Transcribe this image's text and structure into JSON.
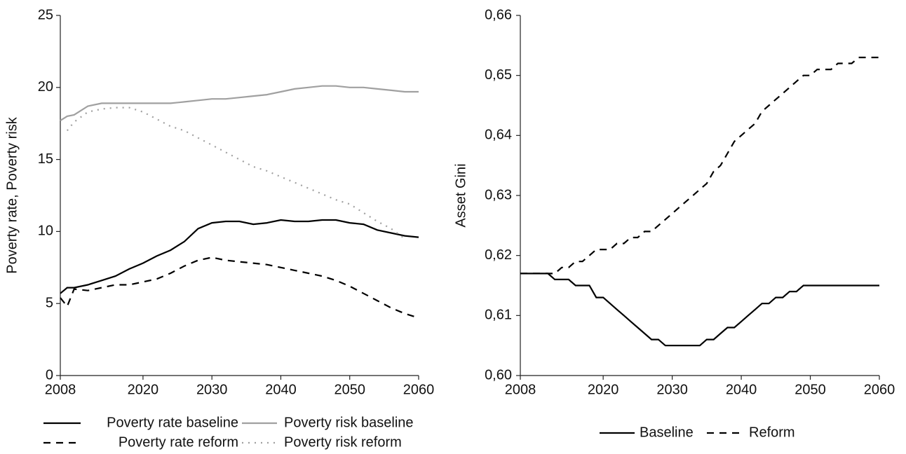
{
  "chart_data": [
    {
      "type": "line",
      "y_label": "Poverty rate, Poverty risk",
      "x": [
        2008,
        2009,
        2010,
        2012,
        2014,
        2016,
        2018,
        2020,
        2022,
        2024,
        2026,
        2028,
        2030,
        2032,
        2034,
        2036,
        2038,
        2040,
        2042,
        2044,
        2046,
        2048,
        2050,
        2052,
        2054,
        2056,
        2058,
        2060
      ],
      "series": [
        {
          "name": "Poverty rate baseline",
          "color": "#000000",
          "style": "solid",
          "values": [
            5.7,
            6.1,
            6.1,
            6.3,
            6.6,
            6.9,
            7.4,
            7.8,
            8.3,
            8.7,
            9.3,
            10.2,
            10.6,
            10.7,
            10.7,
            10.5,
            10.6,
            10.8,
            10.7,
            10.7,
            10.8,
            10.8,
            10.6,
            10.5,
            10.1,
            9.9,
            9.7,
            9.6
          ]
        },
        {
          "name": "Poverty risk baseline",
          "color": "#a0a0a0",
          "style": "solid",
          "values": [
            17.7,
            18.0,
            18.1,
            18.7,
            18.9,
            18.9,
            18.9,
            18.9,
            18.9,
            18.9,
            19.0,
            19.1,
            19.2,
            19.2,
            19.3,
            19.4,
            19.5,
            19.7,
            19.9,
            20.0,
            20.1,
            20.1,
            20.0,
            20.0,
            19.9,
            19.8,
            19.7,
            19.7
          ]
        },
        {
          "name": "Poverty rate reform",
          "color": "#000000",
          "style": "dashed",
          "values": [
            5.4,
            4.8,
            6.0,
            5.9,
            6.1,
            6.3,
            6.3,
            6.5,
            6.7,
            7.1,
            7.6,
            8.0,
            8.2,
            8.0,
            7.9,
            7.8,
            7.7,
            7.5,
            7.3,
            7.1,
            6.9,
            6.6,
            6.2,
            5.7,
            5.2,
            4.7,
            4.3,
            4.0
          ]
        },
        {
          "name": "Poverty risk reform",
          "color": "#a0a0a0",
          "style": "dotted",
          "values": [
            null,
            17.0,
            17.6,
            18.3,
            18.5,
            18.6,
            18.6,
            18.3,
            17.8,
            17.3,
            17.0,
            16.5,
            16.0,
            15.5,
            15.0,
            14.5,
            14.2,
            13.8,
            13.4,
            13.0,
            12.6,
            12.2,
            11.9,
            11.3,
            10.7,
            10.2,
            9.5,
            null
          ]
        }
      ],
      "xlim": [
        2008,
        2060
      ],
      "xticks": [
        2008,
        2020,
        2030,
        2040,
        2050,
        2060
      ],
      "ylim": [
        0,
        25
      ],
      "yticks": [
        0,
        5,
        10,
        15,
        20,
        25
      ]
    },
    {
      "type": "line",
      "y_label": "Asset Gini",
      "x": [
        2008,
        2009,
        2010,
        2011,
        2012,
        2013,
        2014,
        2015,
        2016,
        2017,
        2018,
        2019,
        2020,
        2021,
        2022,
        2023,
        2024,
        2025,
        2026,
        2027,
        2028,
        2029,
        2030,
        2031,
        2032,
        2033,
        2034,
        2035,
        2036,
        2037,
        2038,
        2039,
        2040,
        2041,
        2042,
        2043,
        2044,
        2045,
        2046,
        2047,
        2048,
        2049,
        2050,
        2051,
        2052,
        2053,
        2054,
        2055,
        2056,
        2057,
        2058,
        2059,
        2060
      ],
      "series": [
        {
          "name": "Baseline",
          "color": "#000000",
          "style": "solid",
          "values": [
            0.617,
            0.617,
            0.617,
            0.617,
            0.617,
            0.616,
            0.616,
            0.616,
            0.615,
            0.615,
            0.615,
            0.613,
            0.613,
            0.612,
            0.611,
            0.61,
            0.609,
            0.608,
            0.607,
            0.606,
            0.606,
            0.605,
            0.605,
            0.605,
            0.605,
            0.605,
            0.605,
            0.606,
            0.606,
            0.607,
            0.608,
            0.608,
            0.609,
            0.61,
            0.611,
            0.612,
            0.612,
            0.613,
            0.613,
            0.614,
            0.614,
            0.615,
            0.615,
            0.615,
            0.615,
            0.615,
            0.615,
            0.615,
            0.615,
            0.615,
            0.615,
            0.615,
            0.615
          ]
        },
        {
          "name": "Reform",
          "color": "#000000",
          "style": "dashed",
          "values": [
            0.617,
            0.617,
            0.617,
            0.617,
            0.617,
            0.617,
            0.618,
            0.618,
            0.619,
            0.619,
            0.62,
            0.621,
            0.621,
            0.621,
            0.622,
            0.622,
            0.623,
            0.623,
            0.624,
            0.624,
            0.625,
            0.626,
            0.627,
            0.628,
            0.629,
            0.63,
            0.631,
            0.632,
            0.634,
            0.635,
            0.637,
            0.639,
            0.64,
            0.641,
            0.642,
            0.644,
            0.645,
            0.646,
            0.647,
            0.648,
            0.649,
            0.65,
            0.65,
            0.651,
            0.651,
            0.651,
            0.652,
            0.652,
            0.652,
            0.653,
            0.653,
            0.653,
            0.653
          ]
        }
      ],
      "xlim": [
        2008,
        2060
      ],
      "xticks": [
        2008,
        2020,
        2030,
        2040,
        2050,
        2060
      ],
      "ylim": [
        0.6,
        0.66
      ],
      "yticks": [
        {
          "value": 0.6,
          "label": "0,60"
        },
        {
          "value": 0.61,
          "label": "0,61"
        },
        {
          "value": 0.62,
          "label": "0,62"
        },
        {
          "value": 0.63,
          "label": "0,63"
        },
        {
          "value": 0.64,
          "label": "0,64"
        },
        {
          "value": 0.65,
          "label": "0,65"
        },
        {
          "value": 0.66,
          "label": "0,66"
        }
      ]
    }
  ]
}
